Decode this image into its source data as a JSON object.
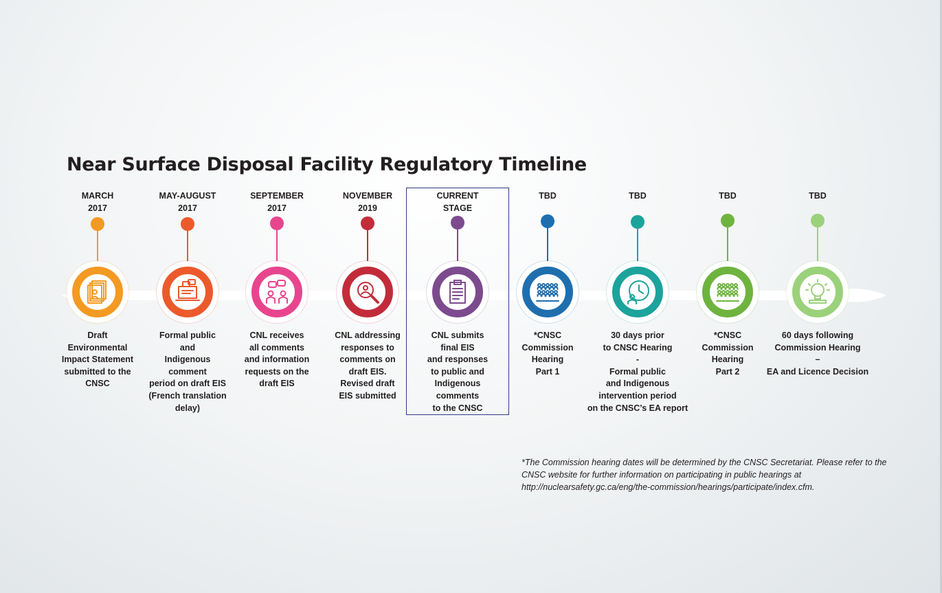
{
  "title": "Near Surface Disposal Facility Regulatory Timeline",
  "stages": [
    {
      "date": "MARCH\n2017",
      "color": "#f39a23",
      "icon": "documents-person-icon",
      "description": "Draft\nEnvironmental\nImpact Statement\nsubmitted to the\nCNSC"
    },
    {
      "date": "MAY-AUGUST\n2017",
      "color": "#ec5a2c",
      "icon": "laptop-comments-icon",
      "description": "Formal public\nand\nIndigenous\ncomment\nperiod on draft EIS\n(French translation\ndelay)"
    },
    {
      "date": "SEPTEMBER\n2017",
      "color": "#e8458f",
      "icon": "people-speech-icon",
      "description": "CNL receives\nall comments\nand information\nrequests on the\ndraft EIS"
    },
    {
      "date": "NOVEMBER\n2019",
      "color": "#c22c3a",
      "icon": "magnifier-person-icon",
      "description": "CNL addressing\nresponses to\ncomments on\ndraft EIS.\nRevised draft\nEIS submitted"
    },
    {
      "date": "CURRENT\nSTAGE",
      "color": "#7c4b8e",
      "icon": "clipboard-icon",
      "description": "CNL submits\nfinal EIS\nand responses\nto public and\nIndigenous\ncomments\nto the CNSC"
    },
    {
      "date": "TBD",
      "color": "#1f6fae",
      "icon": "audience-icon",
      "description": "*CNSC\nCommission\nHearing\nPart 1"
    },
    {
      "date": "TBD",
      "color": "#1ba39c",
      "icon": "clock-person-icon",
      "description": "30 days prior\nto CNSC Hearing\n-\nFormal public\nand Indigenous\nintervention period\non the CNSC’s EA report"
    },
    {
      "date": "TBD",
      "color": "#6fb33f",
      "icon": "audience-icon",
      "description": "*CNSC\nCommission\nHearing\nPart 2"
    },
    {
      "date": "TBD",
      "color": "#9bd17b",
      "icon": "decision-lightbulb-icon",
      "description": "60 days following\nCommission Hearing\n–\nEA and Licence Decision"
    }
  ],
  "footnote": "*The Commission hearing dates will be determined by the CNSC Secretariat. Please refer to the CNSC website for further information on participating in public hearings at http://nuclearsafety.gc.ca/eng/the-commission/hearings/participate/index.cfm."
}
